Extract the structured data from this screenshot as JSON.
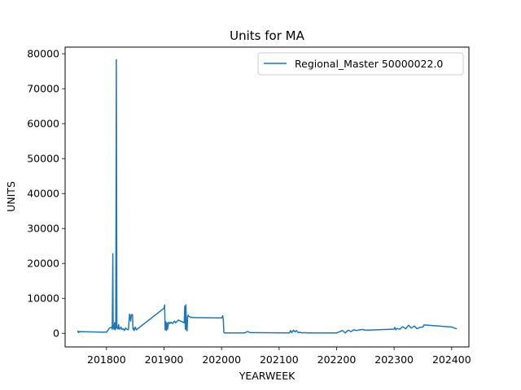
{
  "chart_data": {
    "type": "line",
    "title": "Units for MA",
    "xlabel": "YEARWEEK",
    "ylabel": "UNITS",
    "xlim": [
      201728,
      202430
    ],
    "ylim": [
      -3900,
      81900
    ],
    "x_ticks": [
      201800,
      201900,
      202000,
      202100,
      202200,
      202300,
      202400
    ],
    "y_ticks": [
      0,
      10000,
      20000,
      30000,
      40000,
      50000,
      60000,
      70000,
      80000
    ],
    "grid": false,
    "legend_position": "top-right",
    "series": [
      {
        "name": "Regional_Master 50000022.0",
        "color": "#1f77b4",
        "x": [
          201750,
          201751,
          201752,
          201800,
          201805,
          201809,
          201810,
          201811,
          201811.5,
          201812,
          201813,
          201814,
          201815,
          201816,
          201817,
          201818,
          201819,
          201820,
          201821,
          201822,
          201823,
          201825,
          201827,
          201829,
          201831,
          201833,
          201835,
          201838,
          201840,
          201841,
          201842,
          201843,
          201844,
          201845,
          201846,
          201847,
          201848,
          201850,
          201852,
          201900,
          201901,
          201902,
          201903,
          201904,
          201905,
          201906,
          201908,
          201910,
          201912,
          201915,
          201918,
          201920,
          201925,
          201930,
          201935,
          201936,
          201937,
          201938,
          201939,
          201940,
          201941,
          201942,
          201943,
          201944,
          201945,
          201946,
          201947,
          201948,
          201950,
          202000,
          202002,
          202003,
          202004,
          202005,
          202040,
          202045,
          202050,
          202118,
          202120,
          202122,
          202125,
          202128,
          202130,
          202133,
          202136,
          202140,
          202145,
          202150,
          202200,
          202210,
          202215,
          202220,
          202225,
          202230,
          202235,
          202240,
          202245,
          202250,
          202300,
          202301,
          202303,
          202305,
          202310,
          202315,
          202320,
          202325,
          202330,
          202335,
          202340,
          202345,
          202350,
          202352,
          202400,
          202405,
          202409
        ],
        "y": [
          800,
          200,
          500,
          300,
          1500,
          1800,
          1200,
          22800,
          1500,
          2000,
          1200,
          3000,
          1000,
          1500,
          78300,
          1500,
          1800,
          1200,
          2500,
          1400,
          1200,
          1800,
          1100,
          1300,
          800,
          1500,
          1200,
          1000,
          5500,
          4800,
          3500,
          5300,
          5200,
          5400,
          1200,
          1500,
          800,
          1800,
          1000,
          7200,
          8100,
          1000,
          3300,
          800,
          3000,
          1200,
          3200,
          2800,
          3200,
          2800,
          3500,
          3000,
          3800,
          3400,
          3000,
          7800,
          1200,
          8200,
          1000,
          700,
          4800,
          5200,
          4900,
          4800,
          4700,
          4600,
          4500,
          4600,
          4500,
          4400,
          5000,
          3800,
          300,
          100,
          100,
          500,
          200,
          100,
          800,
          200,
          900,
          400,
          800,
          200,
          300,
          100,
          200,
          100,
          100,
          800,
          100,
          900,
          500,
          1000,
          800,
          1000,
          1100,
          900,
          1200,
          1700,
          1000,
          1400,
          1200,
          1900,
          1300,
          2300,
          1500,
          2100,
          1300,
          1700,
          1800,
          2400,
          1800,
          1500,
          1300
        ]
      }
    ]
  }
}
